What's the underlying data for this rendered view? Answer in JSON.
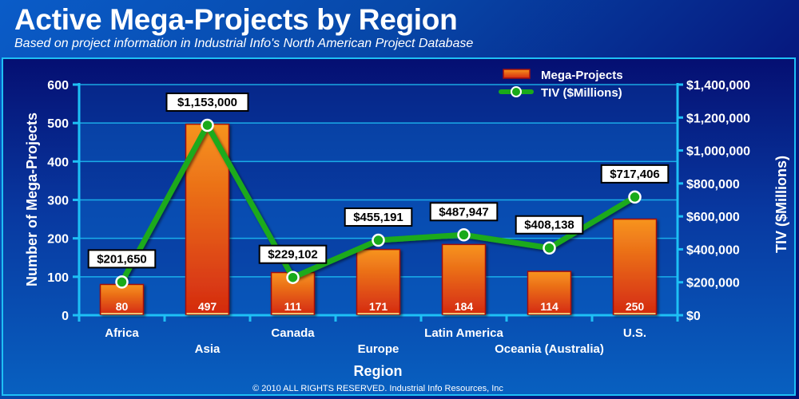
{
  "header": {
    "title": "Active Mega-Projects by Region",
    "subtitle": "Based on project information in Industrial Info's North American Project Database"
  },
  "footer": {
    "copyright": "© 2010 ALL RIGHTS RESERVED. Industrial Info Resources, Inc"
  },
  "colors": {
    "bar_top": "#f7941d",
    "bar_bottom": "#d42a10",
    "bar_border": "#a01010",
    "bar_base": "#f0c070",
    "line": "#1aaa1a",
    "axis": "#1ec0f5",
    "label_bg": "#ffffff"
  },
  "chart_data": {
    "type": "bar",
    "title": "Active Mega-Projects by Region",
    "subtitle": "Based on project information in Industrial Info's North American Project Database",
    "categories": [
      "Africa",
      "Asia",
      "Canada",
      "Europe",
      "Latin America",
      "Oceania (Australia)",
      "U.S."
    ],
    "xlabel": "Region",
    "ylabel": "Number of Mega-Projects",
    "ylabel_right": "TIV ($Millions)",
    "ylim": [
      0,
      600
    ],
    "ylim_right": [
      0,
      1400000
    ],
    "yticks": [
      "0",
      "100",
      "200",
      "300",
      "400",
      "500",
      "600"
    ],
    "yticks_right": [
      "$0",
      "$200,000",
      "$400,000",
      "$600,000",
      "$800,000",
      "$1,000,000",
      "$1,200,000",
      "$1,400,000"
    ],
    "grid": true,
    "legend_position": "top-right",
    "series": [
      {
        "name": "Mega-Projects",
        "type": "bar",
        "axis": "left",
        "values": [
          80,
          497,
          111,
          171,
          184,
          114,
          250
        ],
        "labels": [
          "80",
          "497",
          "111",
          "171",
          "184",
          "114",
          "250"
        ]
      },
      {
        "name": "TIV ($Millions)",
        "type": "line",
        "axis": "right",
        "values": [
          201650,
          1153000,
          229102,
          455191,
          487947,
          408138,
          717406
        ],
        "labels": [
          "$201,650",
          "$1,153,000",
          "$229,102",
          "$455,191",
          "$487,947",
          "$408,138",
          "$717,406"
        ]
      }
    ]
  }
}
